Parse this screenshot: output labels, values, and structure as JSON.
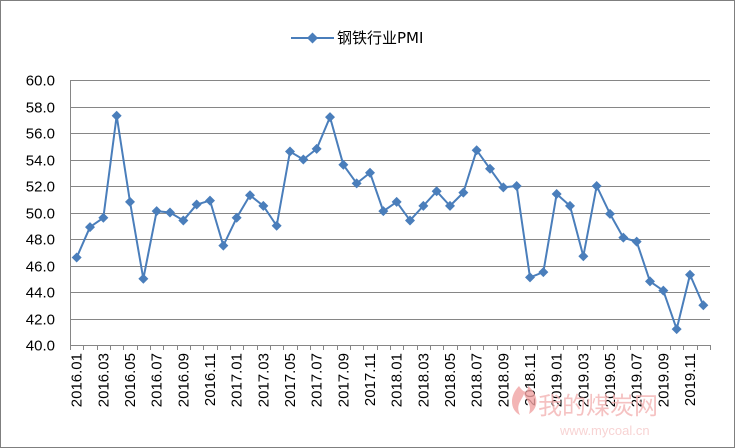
{
  "chart_data": {
    "type": "line",
    "title": "",
    "xlabel": "",
    "ylabel": "",
    "ylim": [
      40.0,
      60.0
    ],
    "yticks": [
      "40.0",
      "42.0",
      "44.0",
      "46.0",
      "48.0",
      "50.0",
      "52.0",
      "54.0",
      "56.0",
      "58.0",
      "60.0"
    ],
    "grid": true,
    "legend_position": "top",
    "marker": "diamond",
    "categories": [
      "2016.01",
      "2016.02",
      "2016.03",
      "2016.04",
      "2016.05",
      "2016.06",
      "2016.07",
      "2016.08",
      "2016.09",
      "2016.10",
      "2016.11",
      "2016.12",
      "2017.01",
      "2017.02",
      "2017.03",
      "2017.04",
      "2017.05",
      "2017.06",
      "2017.07",
      "2017.08",
      "2017.09",
      "2017.10",
      "2017.11",
      "2017.12",
      "2018.01",
      "2018.02",
      "2018.03",
      "2018.04",
      "2018.05",
      "2018.06",
      "2018.07",
      "2018.08",
      "2018.09",
      "2018.10",
      "2018.11",
      "2018.12",
      "2019.01",
      "2019.02",
      "2019.03",
      "2019.04",
      "2019.05",
      "2019.06",
      "2019.07",
      "2019.08",
      "2019.09",
      "2019.10",
      "2019.11",
      "2019.12"
    ],
    "xtick_labels": [
      "2016.01",
      "2016.03",
      "2016.05",
      "2016.07",
      "2016.09",
      "2016.11",
      "2017.01",
      "2017.03",
      "2017.05",
      "2017.07",
      "2017.09",
      "2017.11",
      "2018.01",
      "2018.03",
      "2018.05",
      "2018.07",
      "2018.09",
      "2018.11",
      "2019.01",
      "2019.03",
      "2019.05",
      "2019.07",
      "2019.09",
      "2019.11"
    ],
    "series": [
      {
        "name": "钢铁行业PMI",
        "color": "#4a7ebb",
        "values": [
          46.6,
          48.9,
          49.6,
          57.3,
          50.8,
          45.0,
          50.1,
          50.0,
          49.4,
          50.6,
          50.9,
          47.5,
          49.6,
          51.3,
          50.5,
          49.0,
          54.6,
          54.0,
          54.8,
          57.2,
          53.6,
          52.2,
          53.0,
          50.1,
          50.8,
          49.4,
          50.5,
          51.6,
          50.5,
          51.5,
          54.7,
          53.3,
          51.9,
          52.0,
          45.1,
          45.5,
          51.4,
          50.5,
          46.7,
          52.0,
          49.9,
          48.1,
          47.8,
          44.8,
          44.1,
          41.2,
          45.3,
          43.0
        ]
      }
    ]
  },
  "watermark": {
    "text": "我的煤炭网",
    "url": "www.mycoal.cn",
    "color": "#f3b4b4"
  }
}
